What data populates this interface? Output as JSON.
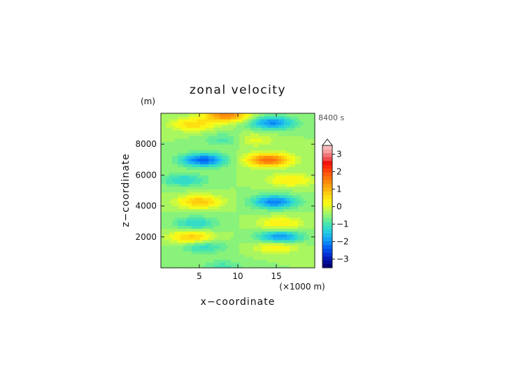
{
  "chart_data": {
    "type": "heatmap",
    "title": "zonal velocity",
    "xlabel": "x−coordinate",
    "ylabel": "z−coordinate",
    "x_unit": "(×1000 m)",
    "y_unit": "(m)",
    "time_label": "8400 s",
    "xlim": [
      0,
      20
    ],
    "ylim": [
      0,
      10000
    ],
    "x_ticks": [
      5,
      10,
      15
    ],
    "y_ticks": [
      2000,
      4000,
      6000,
      8000
    ],
    "x_tick_labels": [
      "5",
      "10",
      "15"
    ],
    "y_tick_labels": [
      "2000",
      "4000",
      "6000",
      "8000"
    ],
    "colorbar": {
      "min": -3.5,
      "max": 3.5,
      "step": 0.25,
      "tick_values": [
        -3,
        -2,
        -1,
        0,
        1,
        2,
        3
      ],
      "tick_labels": [
        "−3",
        "−2",
        "−1",
        "0",
        "1",
        "2",
        "3"
      ],
      "extend": "max",
      "colors": [
        "#00007a",
        "#000c96",
        "#0018b4",
        "#0030d2",
        "#0048e6",
        "#0064f2",
        "#0a84f6",
        "#14a0f4",
        "#1cb8ee",
        "#26cce0",
        "#34dcc8",
        "#48e4b0",
        "#66ec94",
        "#88f27a",
        "#a8f660",
        "#ccfa40",
        "#f0fc1c",
        "#fcf416",
        "#fee012",
        "#fecc10",
        "#feb60e",
        "#fea00c",
        "#fe8a0c",
        "#fe720c",
        "#fe5a0c",
        "#fe400c",
        "#fe280c",
        "#f0140c",
        "#ee4c50",
        "#f27476",
        "#f6a0a0",
        "#f8bcbc"
      ]
    },
    "features": [
      {
        "x": 4.2,
        "z": 9300,
        "value": 1.2
      },
      {
        "x": 8.5,
        "z": 9900,
        "value": 2.2
      },
      {
        "x": 14.5,
        "z": 9400,
        "value": -1.8
      },
      {
        "x": 11.5,
        "z": 8300,
        "value": 0.8
      },
      {
        "x": 8.8,
        "z": 8300,
        "value": -0.8
      },
      {
        "x": 5.5,
        "z": 7000,
        "value": -2.2
      },
      {
        "x": 14.0,
        "z": 7000,
        "value": 2.5
      },
      {
        "x": 3.0,
        "z": 5700,
        "value": -1.0
      },
      {
        "x": 16.8,
        "z": 5700,
        "value": 1.0
      },
      {
        "x": 5.0,
        "z": 4300,
        "value": 1.5
      },
      {
        "x": 14.8,
        "z": 4300,
        "value": -2.0
      },
      {
        "x": 4.5,
        "z": 2900,
        "value": -1.0
      },
      {
        "x": 15.5,
        "z": 2900,
        "value": 1.0
      },
      {
        "x": 4.0,
        "z": 2000,
        "value": 1.4
      },
      {
        "x": 15.5,
        "z": 2000,
        "value": -1.8
      },
      {
        "x": 5.5,
        "z": 1400,
        "value": -0.9
      },
      {
        "x": 15.0,
        "z": 1400,
        "value": 1.0
      },
      {
        "x": 8.0,
        "z": 100,
        "value": -0.6
      }
    ]
  }
}
